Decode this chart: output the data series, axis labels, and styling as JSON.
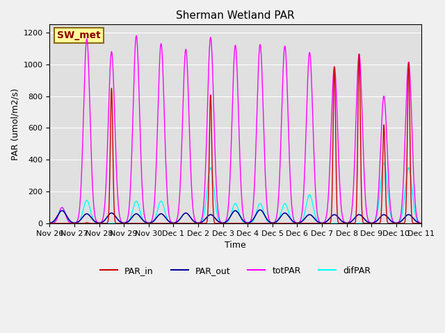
{
  "title": "Sherman Wetland PAR",
  "ylabel": "PAR (umol/m2/s)",
  "xlabel": "Time",
  "ylim": [
    0,
    1250
  ],
  "yticks": [
    0,
    200,
    400,
    600,
    800,
    1000,
    1200
  ],
  "n_days": 15,
  "colors": {
    "PAR_in": "#cc0000",
    "PAR_out": "#000099",
    "totPAR": "#ff00ff",
    "difPAR": "#00ffff"
  },
  "legend_label": "SW_met",
  "bg_color": "#e0e0e0",
  "peaks": {
    "Nov26": {
      "totPAR": 100,
      "PAR_out": 80,
      "difPAR": 100,
      "PAR_in": 0
    },
    "Nov27": {
      "totPAR": 1160,
      "PAR_out": 60,
      "difPAR": 145,
      "PAR_in": 5
    },
    "Nov28": {
      "totPAR": 1080,
      "PAR_out": 65,
      "difPAR": 0,
      "PAR_in": 850
    },
    "Nov29": {
      "totPAR": 1180,
      "PAR_out": 60,
      "difPAR": 140,
      "PAR_in": 0
    },
    "Nov30": {
      "totPAR": 1130,
      "PAR_out": 60,
      "difPAR": 140,
      "PAR_in": 0
    },
    "Dec1": {
      "totPAR": 1095,
      "PAR_out": 65,
      "difPAR": 0,
      "PAR_in": 0
    },
    "Dec2": {
      "totPAR": 1170,
      "PAR_out": 55,
      "difPAR": 350,
      "PAR_in": 810
    },
    "Dec3": {
      "totPAR": 1120,
      "PAR_out": 80,
      "difPAR": 125,
      "PAR_in": 0
    },
    "Dec4": {
      "totPAR": 1125,
      "PAR_out": 85,
      "difPAR": 125,
      "PAR_in": 0
    },
    "Dec5": {
      "totPAR": 1115,
      "PAR_out": 65,
      "difPAR": 125,
      "PAR_in": 0
    },
    "Dec6": {
      "totPAR": 1075,
      "PAR_out": 55,
      "difPAR": 180,
      "PAR_in": 0
    },
    "Dec7": {
      "totPAR": 985,
      "PAR_out": 55,
      "difPAR": 0,
      "PAR_in": 985
    },
    "Dec8": {
      "totPAR": 1065,
      "PAR_out": 55,
      "difPAR": 0,
      "PAR_in": 1065
    },
    "Dec9": {
      "totPAR": 800,
      "PAR_out": 55,
      "difPAR": 380,
      "PAR_in": 620
    },
    "Dec10": {
      "totPAR": 1015,
      "PAR_out": 55,
      "difPAR": 350,
      "PAR_in": 1010
    }
  },
  "days_order": [
    "Nov26",
    "Nov27",
    "Nov28",
    "Nov29",
    "Nov30",
    "Dec1",
    "Dec2",
    "Dec3",
    "Dec4",
    "Dec5",
    "Dec6",
    "Dec7",
    "Dec8",
    "Dec9",
    "Dec10"
  ],
  "xticklabels": [
    "Nov 26",
    "Nov 27",
    "Nov 28",
    "Nov 29",
    "Nov 30",
    "Dec 1",
    "Dec 2",
    "Dec 3",
    "Dec 4",
    "Dec 5",
    "Dec 6",
    "Dec 7",
    "Dec 8",
    "Dec 9",
    "Dec 10",
    "Dec 11"
  ]
}
